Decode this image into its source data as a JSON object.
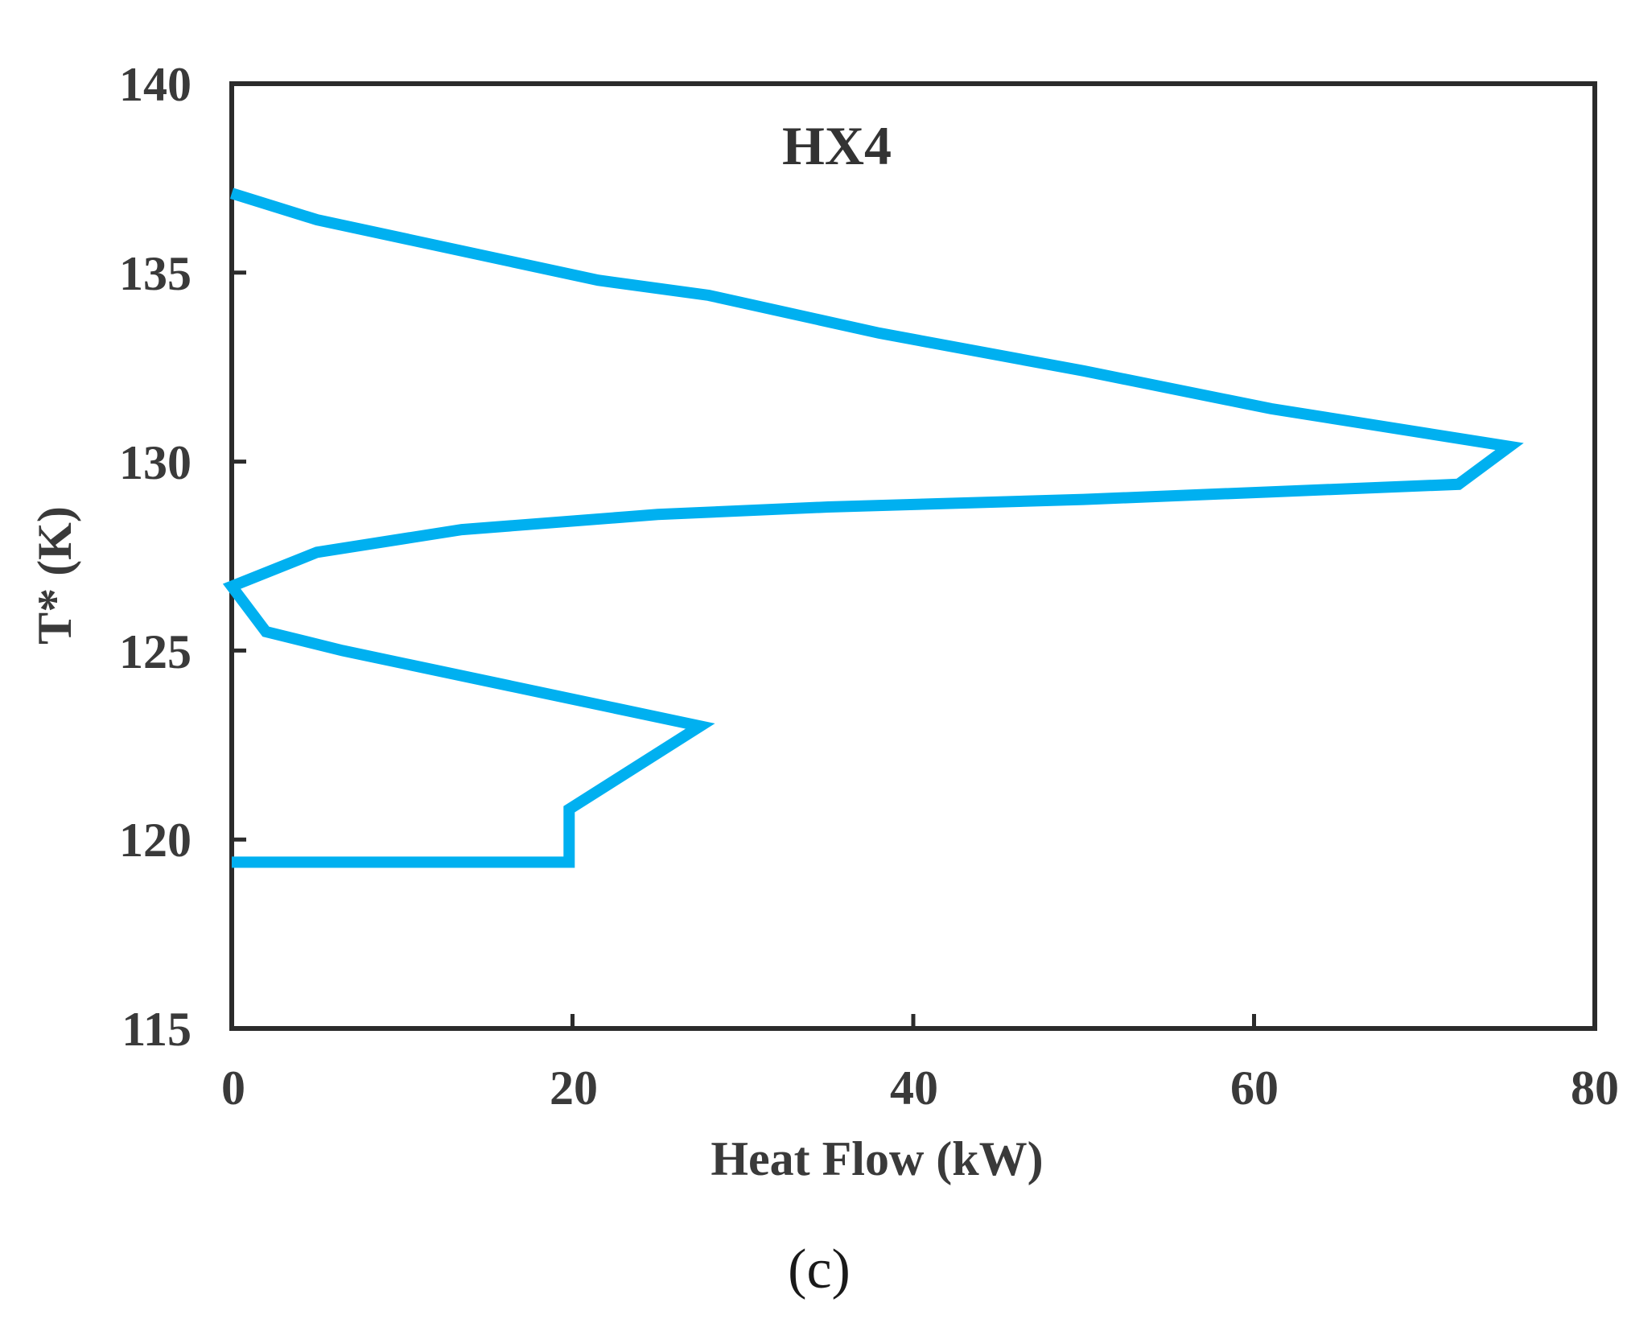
{
  "chart_data": {
    "type": "line",
    "title": "HX4",
    "xlabel": "Heat Flow (kW)",
    "ylabel": "T* (K)",
    "xlim": [
      0,
      80
    ],
    "ylim": [
      115,
      140
    ],
    "x_ticks": [
      "0",
      "20",
      "40",
      "60",
      "80"
    ],
    "y_ticks": [
      "115",
      "120",
      "125",
      "130",
      "135",
      "140"
    ],
    "grid": false,
    "legend": "none",
    "series": [
      {
        "color": "#00b0f0",
        "x": [
          0,
          5,
          21.5,
          28,
          38,
          50,
          61,
          75,
          72,
          61,
          50,
          35,
          25,
          13.5,
          5,
          0,
          2,
          6.5,
          27.5,
          19.8,
          19.8,
          0
        ],
        "y": [
          137.1,
          136.4,
          134.8,
          134.4,
          133.4,
          132.4,
          131.4,
          130.4,
          129.4,
          129.2,
          129.0,
          128.8,
          128.6,
          128.2,
          127.6,
          126.7,
          125.5,
          125.0,
          123.0,
          120.8,
          119.4,
          119.4
        ]
      }
    ]
  },
  "caption": "(c)"
}
